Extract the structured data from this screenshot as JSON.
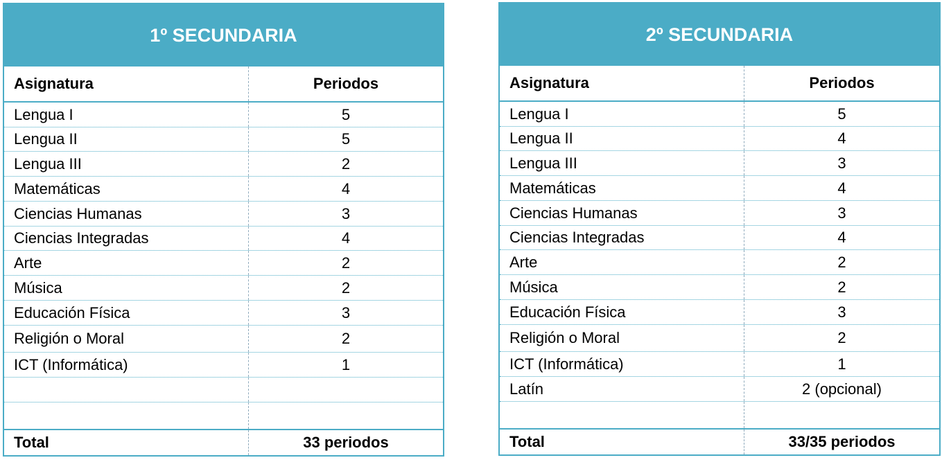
{
  "tables": [
    {
      "title": "1º SECUNDARIA",
      "headers": [
        "Asignatura",
        "Periodos"
      ],
      "rows": [
        {
          "subject": "Lengua I",
          "periods": "5"
        },
        {
          "subject": "Lengua II",
          "periods": "5"
        },
        {
          "subject": "Lengua III",
          "periods": "2"
        },
        {
          "subject": "Matemáticas",
          "periods": "4"
        },
        {
          "subject": "Ciencias Humanas",
          "periods": "3"
        },
        {
          "subject": "Ciencias Integradas",
          "periods": "4"
        },
        {
          "subject": "Arte",
          "periods": "2"
        },
        {
          "subject": "Música",
          "periods": "2"
        },
        {
          "subject": "Educación Física",
          "periods": "3"
        },
        {
          "subject": "Religión o Moral",
          "periods": "2"
        },
        {
          "subject": "ICT (Informática)",
          "periods": "1"
        },
        {
          "subject": "",
          "periods": ""
        },
        {
          "subject": "",
          "periods": ""
        }
      ],
      "total": {
        "label": "Total",
        "value": "33 periodos"
      }
    },
    {
      "title": "2º SECUNDARIA",
      "headers": [
        "Asignatura",
        "Periodos"
      ],
      "rows": [
        {
          "subject": "Lengua I",
          "periods": "5"
        },
        {
          "subject": "Lengua II",
          "periods": "4"
        },
        {
          "subject": "Lengua III",
          "periods": "3"
        },
        {
          "subject": "Matemáticas",
          "periods": "4"
        },
        {
          "subject": "Ciencias Humanas",
          "periods": "3"
        },
        {
          "subject": "Ciencias Integradas",
          "periods": "4"
        },
        {
          "subject": "Arte",
          "periods": "2"
        },
        {
          "subject": "Música",
          "periods": "2"
        },
        {
          "subject": "Educación Física",
          "periods": "3"
        },
        {
          "subject": "Religión o Moral",
          "periods": "2"
        },
        {
          "subject": "ICT (Informática)",
          "periods": "1"
        },
        {
          "subject": "Latín",
          "periods": "2 (opcional)"
        },
        {
          "subject": "",
          "periods": ""
        }
      ],
      "total": {
        "label": "Total",
        "value": "33/35 periodos"
      }
    }
  ],
  "colors": {
    "accent": "#4bacc6",
    "title_text": "#ffffff"
  }
}
